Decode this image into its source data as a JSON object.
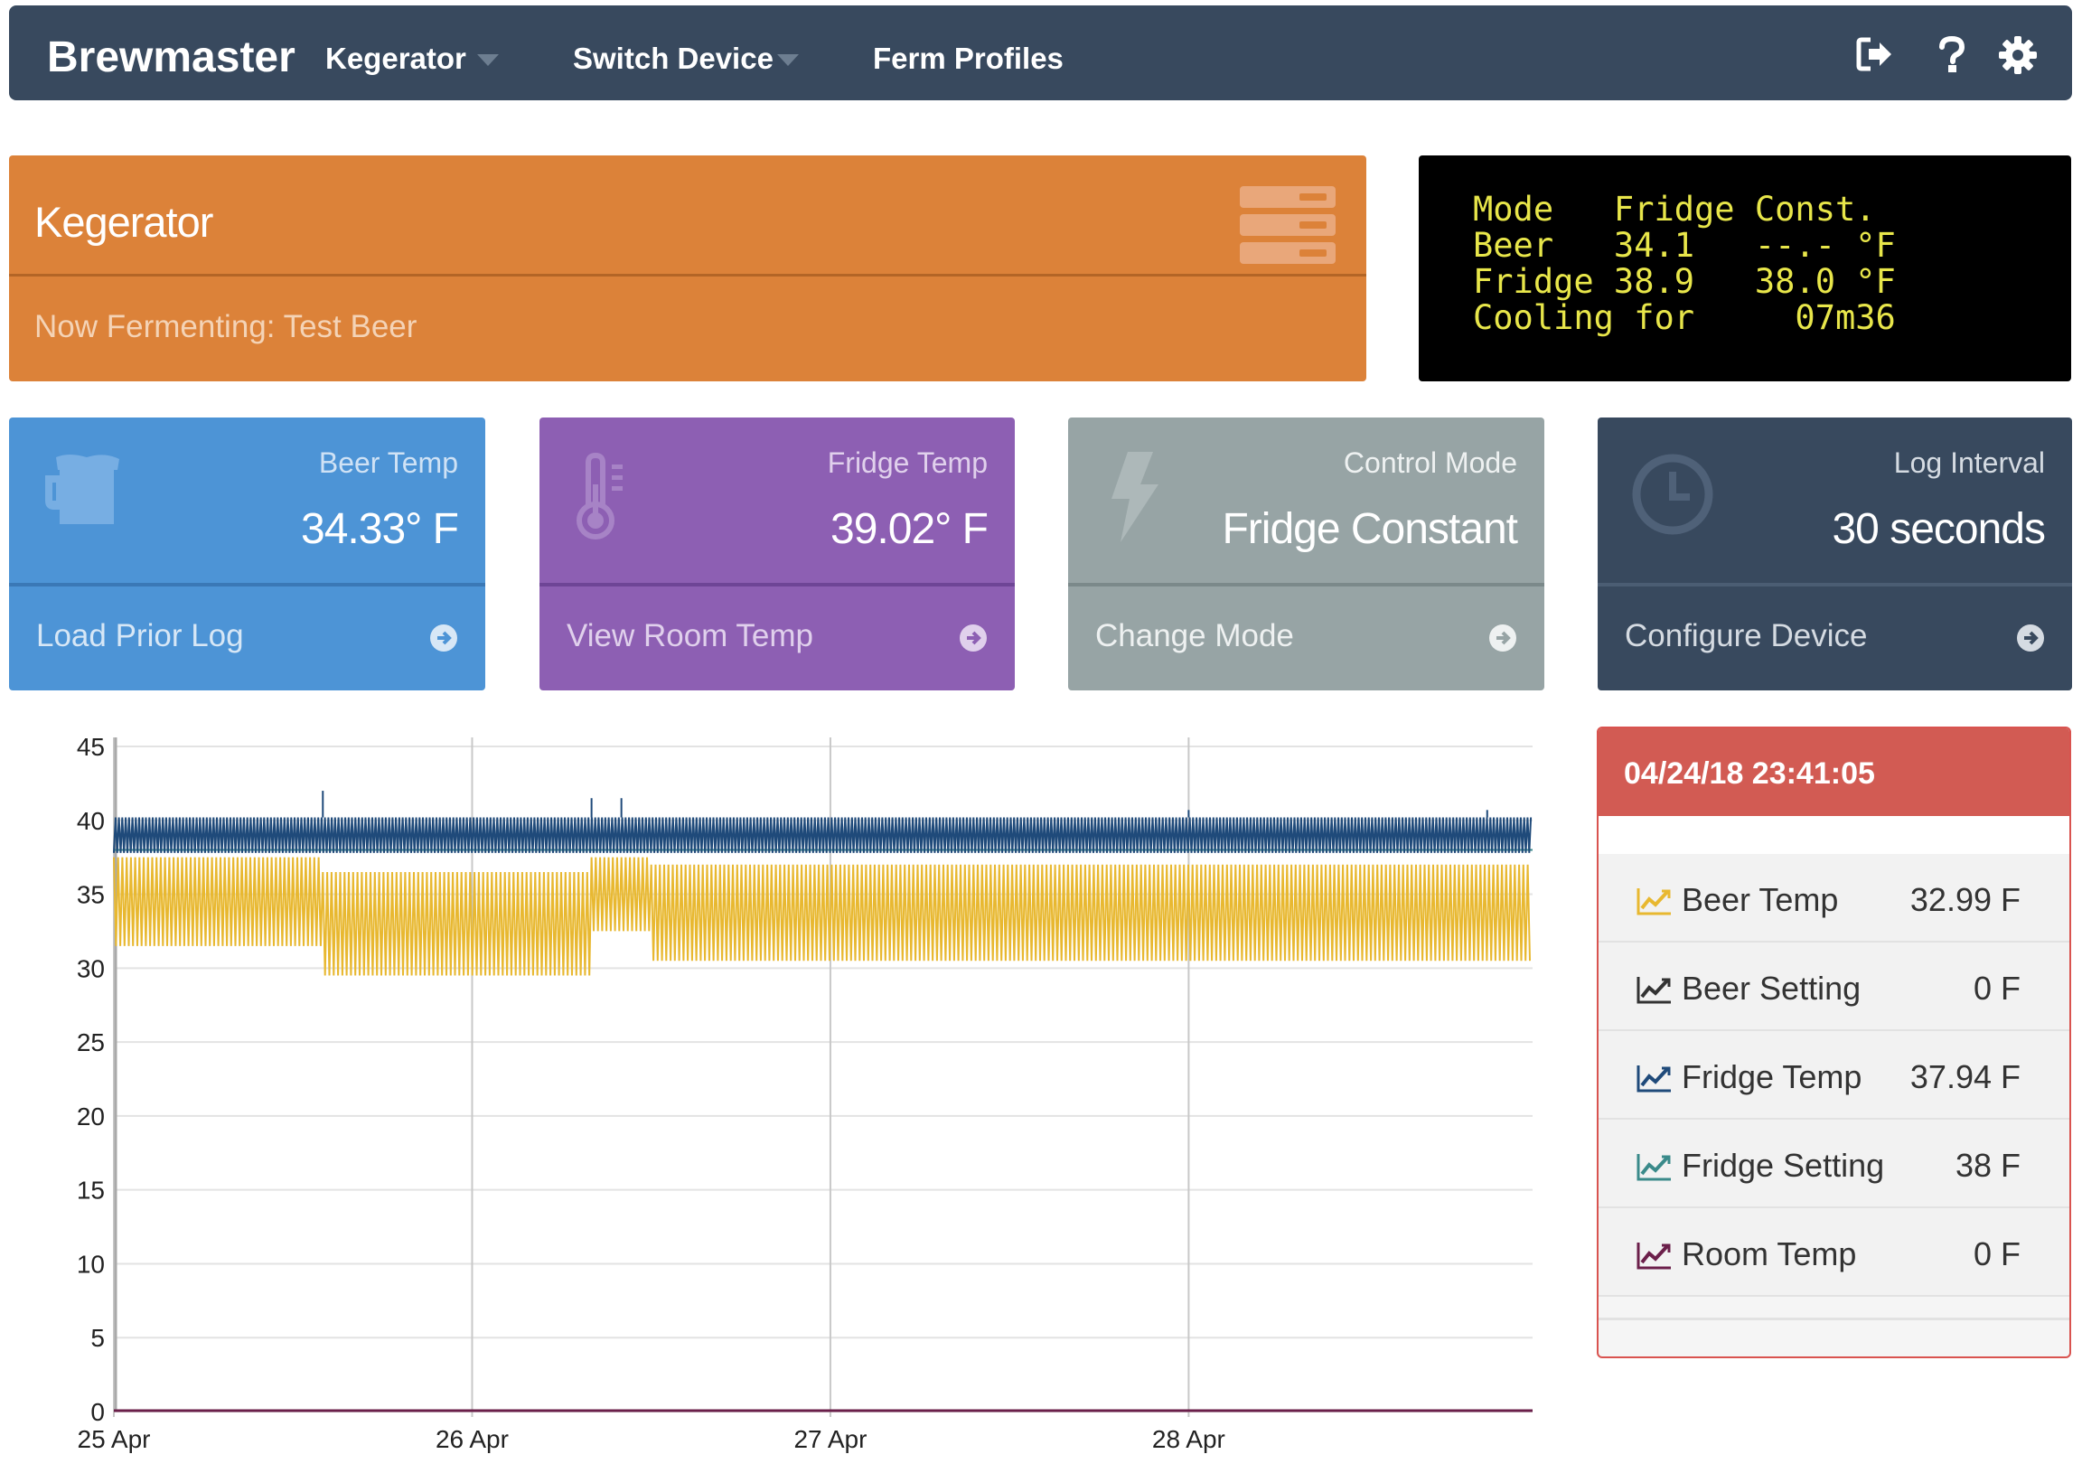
{
  "navbar": {
    "brand": "Brewmaster",
    "items": [
      {
        "label": "Kegerator",
        "has_dropdown": true
      },
      {
        "label": "Switch Device",
        "has_dropdown": true
      },
      {
        "label": "Ferm Profiles",
        "has_dropdown": false
      }
    ],
    "icons": [
      "sign-out-icon",
      "help-icon",
      "gear-icon"
    ]
  },
  "banner": {
    "title": "Kegerator",
    "subtitle": "Now Fermenting: Test Beer",
    "icon": "server-stack-icon"
  },
  "lcd": {
    "lines": [
      "Mode   Fridge Const.",
      "Beer   34.1   --.- °F",
      "Fridge 38.9   38.0 °F",
      "Cooling for     07m36"
    ]
  },
  "panels": [
    {
      "title": "Beer Temp",
      "value": "34.33° F",
      "link": "Load Prior Log",
      "icon": "beer-mug-icon",
      "color": "#4d94d6"
    },
    {
      "title": "Fridge Temp",
      "value": "39.02° F",
      "link": "View Room Temp",
      "icon": "thermometer-icon",
      "color": "#8d5fb3"
    },
    {
      "title": "Control Mode",
      "value": "Fridge Constant",
      "link": "Change Mode",
      "icon": "lightning-icon",
      "color": "#97a4a5"
    },
    {
      "title": "Log Interval",
      "value": "30 seconds",
      "link": "Configure Device",
      "icon": "clock-icon",
      "color": "#38495e"
    }
  ],
  "legend": {
    "timestamp": "04/24/18 23:41:05",
    "rows": [
      {
        "name": "Beer Temp",
        "value": "32.99 F",
        "color": "#e8b830"
      },
      {
        "name": "Beer Setting",
        "value": "0 F",
        "color": "#333333"
      },
      {
        "name": "Fridge Temp",
        "value": "37.94 F",
        "color": "#1f4a7a"
      },
      {
        "name": "Fridge Setting",
        "value": "38 F",
        "color": "#3a8a8a"
      },
      {
        "name": "Room Temp",
        "value": "0 F",
        "color": "#6b1f4a"
      }
    ]
  },
  "chart_data": {
    "type": "line",
    "title": "",
    "xlabel": "",
    "ylabel": "",
    "ylim": [
      0,
      45
    ],
    "yticks": [
      0,
      5,
      10,
      15,
      20,
      25,
      30,
      35,
      40,
      45
    ],
    "xticks": [
      "25 Apr",
      "26 Apr",
      "27 Apr",
      "28 Apr"
    ],
    "xlim_days": [
      "2018-04-25",
      "2018-04-28 23:00"
    ],
    "grid": true,
    "series": [
      {
        "name": "Fridge Temp",
        "color": "#1f4a7a",
        "pattern": "oscillating",
        "low": 37.8,
        "high": 40.2,
        "spikes": [
          {
            "x": "2018-04-25 14:00",
            "y": 42
          },
          {
            "x": "2018-04-26 08:00",
            "y": 41.5
          },
          {
            "x": "2018-04-26 10:00",
            "y": 41.5
          },
          {
            "x": "2018-04-28 00:00",
            "y": 40.7
          },
          {
            "x": "2018-04-28 20:00",
            "y": 40.7
          }
        ]
      },
      {
        "name": "Fridge Setting",
        "color": "#3a8a8a",
        "values_constant": 38
      },
      {
        "name": "Beer Temp",
        "color": "#e8b830",
        "pattern": "oscillating",
        "segments": [
          {
            "from": "2018-04-25",
            "to": "2018-04-25 14:00",
            "low": 31.5,
            "high": 37.5
          },
          {
            "from": "2018-04-25 14:00",
            "to": "2018-04-26 08:00",
            "low": 29.5,
            "high": 36.5
          },
          {
            "from": "2018-04-26 08:00",
            "to": "2018-04-26 12:00",
            "low": 32.5,
            "high": 37.5
          },
          {
            "from": "2018-04-26 12:00",
            "to": "2018-04-28 23:00",
            "low": 30.5,
            "high": 37
          }
        ]
      },
      {
        "name": "Room Temp",
        "color": "#6b1f4a",
        "values_constant": 0
      }
    ]
  }
}
